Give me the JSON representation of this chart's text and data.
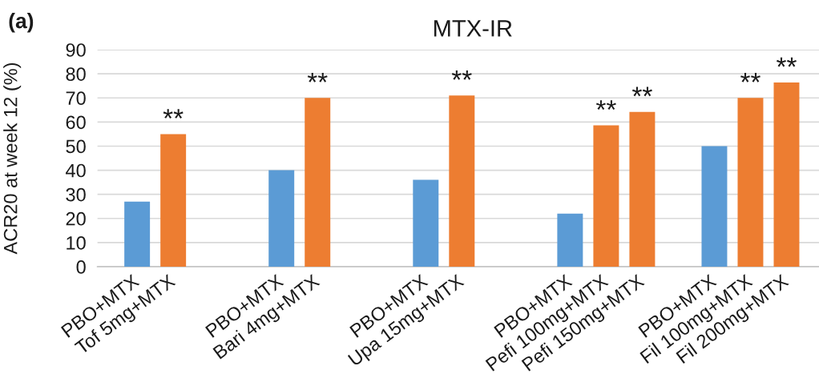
{
  "chart_data": {
    "type": "bar",
    "title": "MTX-IR",
    "ylabel": "ACR20 at week 12 (%)",
    "categories": [
      "PBO+MTX",
      "Tof 5mg+MTX",
      null,
      null,
      "PBO+MTX",
      "Bari 4mg+MTX",
      null,
      null,
      "PBO+MTX",
      "Upa 15mg+MTX",
      null,
      null,
      "PBO+MTX",
      "Pefi 100mg+MTX",
      "Pefi 150mg+MTX",
      null,
      "PBO+MTX",
      "Fil 100mg+MTX",
      "Fil 200mg+MTX"
    ],
    "values": [
      27,
      55,
      null,
      null,
      40,
      70,
      null,
      null,
      36,
      71,
      null,
      null,
      22,
      58.6,
      64.2,
      null,
      50,
      70,
      76.4
    ],
    "colors": [
      "#5b9bd5",
      "#ed7d31",
      null,
      null,
      "#5b9bd5",
      "#ed7d31",
      null,
      null,
      "#5b9bd5",
      "#ed7d31",
      null,
      null,
      "#5b9bd5",
      "#ed7d31",
      "#ed7d31",
      null,
      "#5b9bd5",
      "#ed7d31",
      "#ed7d31"
    ],
    "ylim": [
      0,
      90
    ],
    "yticks": [
      0,
      10,
      20,
      30,
      40,
      50,
      60,
      70,
      80,
      90
    ],
    "grid": "y",
    "annotations": [
      "(a)",
      {
        "text": "**",
        "x": "Tof 5mg+MTX",
        "y": 55
      },
      {
        "text": "**",
        "x": "Bari 4mg+MTX",
        "y": 70
      },
      {
        "text": "**",
        "x": "Upa 15mg+MTX",
        "y": 71
      },
      {
        "text": "**",
        "x": "Pefi 100mg+MTX",
        "y": 58.6
      },
      {
        "text": "**",
        "x": "Pefi 150mg+MTX",
        "y": 64.2
      },
      {
        "text": "**",
        "x": "Fil 100mg+MTX",
        "y": 70
      },
      {
        "text": "**",
        "x": "Fil 200mg+MTX",
        "y": 76.4
      }
    ]
  }
}
